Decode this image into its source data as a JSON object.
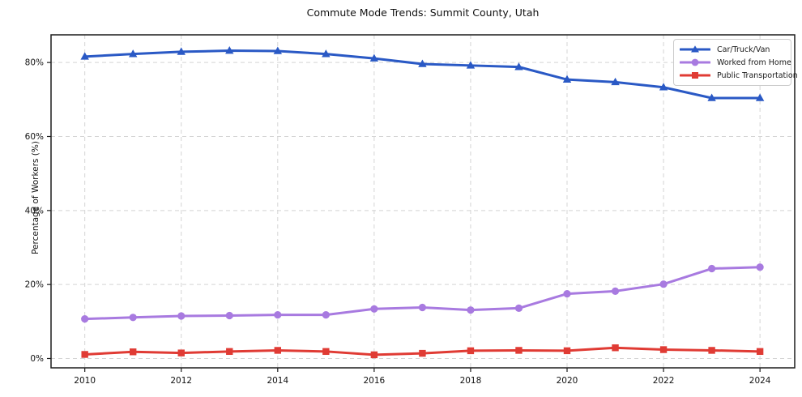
{
  "chart_data": {
    "type": "line",
    "title": "Commute Mode Trends: Summit County, Utah",
    "xlabel": "",
    "ylabel": "Percentage of Workers (%)",
    "x": [
      2010,
      2011,
      2012,
      2013,
      2014,
      2015,
      2016,
      2017,
      2018,
      2019,
      2020,
      2021,
      2022,
      2023,
      2024
    ],
    "x_ticks": [
      2010,
      2012,
      2014,
      2016,
      2018,
      2020,
      2022,
      2024
    ],
    "x_tick_labels": [
      "2010",
      "2012",
      "2014",
      "2016",
      "2018",
      "2020",
      "2022",
      "2024"
    ],
    "y_ticks": [
      0,
      20,
      40,
      60,
      80
    ],
    "y_tick_labels": [
      "0%",
      "20%",
      "40%",
      "60%",
      "80%"
    ],
    "xlim": [
      2009.3,
      2024.72
    ],
    "ylim": [
      -2.52,
      87.48
    ],
    "grid": true,
    "grid_color": "#d4d4d4",
    "spine_color": "#1c1c1c",
    "legend_position": "upper right",
    "series": [
      {
        "name": "Car/Truck/Van",
        "color": "#2a59c5",
        "marker": "triangle",
        "values": [
          81.6,
          82.3,
          82.9,
          83.2,
          83.1,
          82.3,
          81.1,
          79.6,
          79.2,
          78.8,
          75.4,
          74.7,
          73.3,
          70.4,
          70.4
        ]
      },
      {
        "name": "Worked from Home",
        "color": "#a87ae0",
        "marker": "circle",
        "values": [
          10.7,
          11.1,
          11.5,
          11.6,
          11.8,
          11.8,
          13.4,
          13.8,
          13.1,
          13.6,
          17.5,
          18.2,
          20.1,
          24.3,
          24.7
        ]
      },
      {
        "name": "Public Transportation",
        "color": "#e03b34",
        "marker": "square",
        "values": [
          1.1,
          1.8,
          1.5,
          1.9,
          2.2,
          1.9,
          1.0,
          1.4,
          2.1,
          2.2,
          2.1,
          2.9,
          2.4,
          2.2,
          1.9
        ]
      }
    ]
  }
}
